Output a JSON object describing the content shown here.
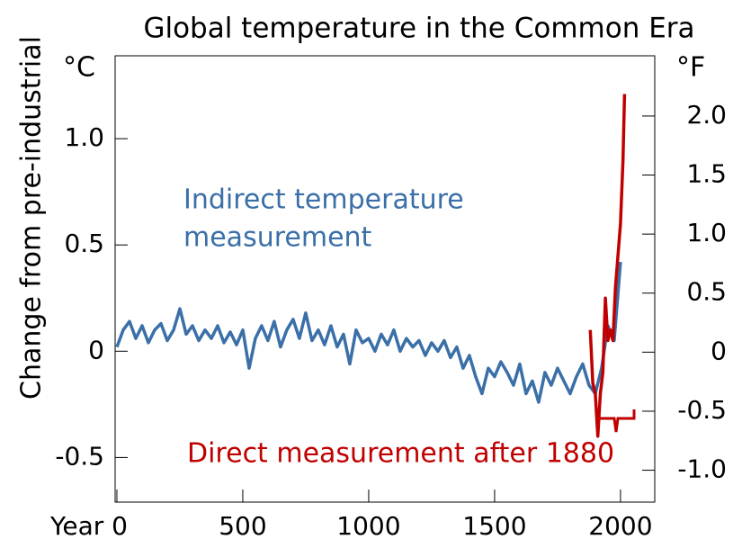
{
  "chart_data": {
    "type": "line",
    "title": "Global temperature in the Common Era",
    "y_unit": "°C",
    "y2_unit": "°F",
    "y_label": "Change from pre-industrial",
    "annotations": {
      "indirect": [
        "Indirect temperature",
        "measurement"
      ],
      "direct": "Direct measurement after 1880"
    },
    "series": [
      {
        "name": "Indirect temperature measurement",
        "color": "#3a6fa8",
        "x": [
          0,
          25,
          50,
          75,
          100,
          125,
          150,
          175,
          200,
          225,
          250,
          275,
          300,
          325,
          350,
          375,
          400,
          425,
          450,
          475,
          500,
          525,
          550,
          575,
          600,
          625,
          650,
          675,
          700,
          725,
          750,
          775,
          800,
          825,
          850,
          875,
          900,
          925,
          950,
          975,
          1000,
          1025,
          1050,
          1075,
          1100,
          1125,
          1150,
          1175,
          1200,
          1225,
          1250,
          1275,
          1300,
          1325,
          1350,
          1375,
          1400,
          1425,
          1450,
          1475,
          1500,
          1525,
          1550,
          1575,
          1600,
          1625,
          1650,
          1675,
          1700,
          1725,
          1750,
          1775,
          1800,
          1825,
          1850,
          1875,
          1900,
          1925,
          1950,
          1975,
          2000
        ],
        "values": [
          0.02,
          0.1,
          0.14,
          0.06,
          0.12,
          0.04,
          0.1,
          0.13,
          0.05,
          0.1,
          0.2,
          0.08,
          0.12,
          0.05,
          0.1,
          0.06,
          0.12,
          0.04,
          0.09,
          0.03,
          0.1,
          -0.08,
          0.06,
          0.12,
          0.05,
          0.14,
          0.02,
          0.1,
          0.15,
          0.06,
          0.18,
          0.05,
          0.1,
          0.03,
          0.12,
          0.02,
          0.08,
          -0.06,
          0.1,
          0.04,
          0.06,
          0.0,
          0.08,
          0.03,
          0.1,
          0.0,
          0.06,
          0.02,
          0.05,
          -0.02,
          0.04,
          0.0,
          0.05,
          -0.03,
          0.02,
          -0.08,
          -0.02,
          -0.12,
          -0.2,
          -0.08,
          -0.12,
          -0.05,
          -0.1,
          -0.16,
          -0.06,
          -0.2,
          -0.14,
          -0.24,
          -0.1,
          -0.16,
          -0.08,
          -0.14,
          -0.2,
          -0.12,
          -0.06,
          -0.16,
          -0.2,
          -0.08,
          0.12,
          0.05,
          0.42
        ]
      },
      {
        "name": "Direct measurement after 1880",
        "color": "#c00000",
        "x": [
          1880,
          1890,
          1900,
          1910,
          1920,
          1930,
          1940,
          1950,
          1960,
          1970,
          1980,
          1990,
          2000,
          2010,
          2016
        ],
        "values": [
          0.1,
          -0.15,
          -0.2,
          -0.4,
          -0.2,
          -0.1,
          0.25,
          0.05,
          0.1,
          0.05,
          0.3,
          0.45,
          0.6,
          0.9,
          1.21
        ]
      }
    ],
    "xlim": [
      -7,
      2136
    ],
    "xticks": [
      {
        "value": 0,
        "label": "Year 0"
      },
      500,
      1000,
      1500,
      2000
    ],
    "ylim": [
      -0.71,
      1.39
    ],
    "yticks": [
      -0.5,
      0,
      0.5,
      {
        "value": 1.0,
        "label": "1.0"
      }
    ],
    "y2lim": [
      -1.27,
      2.51
    ],
    "y2ticks": [
      {
        "value": -1.0,
        "label": "-1.0"
      },
      -0.5,
      0,
      0.5,
      {
        "value": 1.0,
        "label": "1.0"
      },
      1.5,
      {
        "value": 2.0,
        "label": "2.0"
      }
    ]
  }
}
